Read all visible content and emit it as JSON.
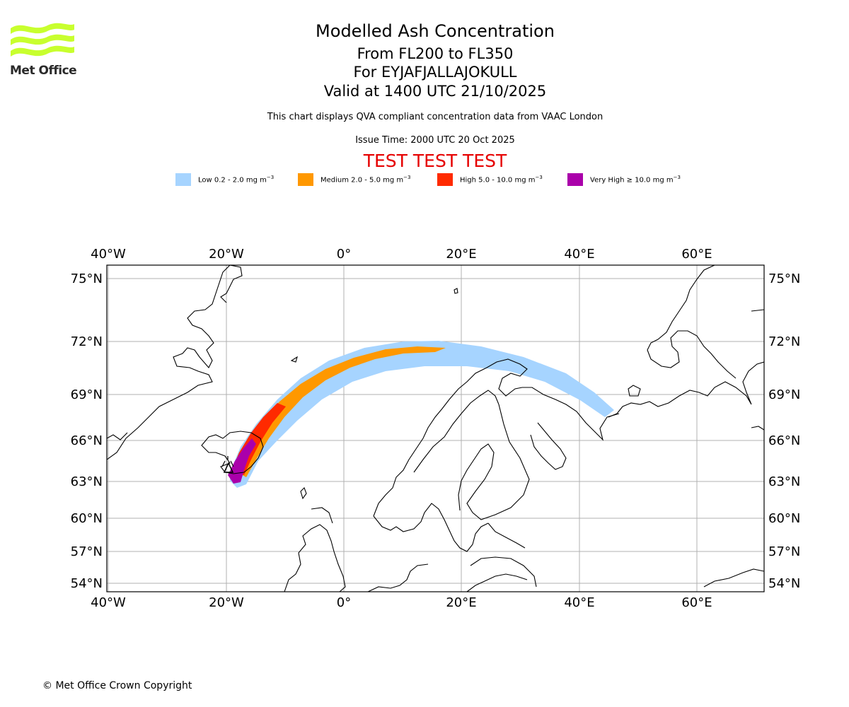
{
  "logo": {
    "text": "Met Office",
    "color": "#c8ff2e"
  },
  "title": {
    "line1": "Modelled Ash Concentration",
    "line2": "From FL200 to FL350",
    "line3": "For EYJAFJALLAJOKULL",
    "line4": "Valid at 1400 UTC 21/10/2025"
  },
  "subtitle": "This chart displays QVA compliant concentration data from VAAC London",
  "issue_time": "Issue Time: 2000 UTC 20 Oct 2025",
  "test_banner": "TEST TEST TEST",
  "legend": [
    {
      "label": "Low 0.2 - 2.0 mg m",
      "color": "#a6d4ff"
    },
    {
      "label": "Medium 2.0 - 5.0 mg m",
      "color": "#ff9800"
    },
    {
      "label": "High 5.0 - 10.0 mg m",
      "color": "#ff2a00"
    },
    {
      "label": "Very High  ≥  10.0 mg m",
      "color": "#aa00aa"
    }
  ],
  "legend_unit_exp": "−3",
  "map": {
    "lon_ticks": [
      "40°W",
      "20°W",
      "0°",
      "20°E",
      "40°E",
      "60°E"
    ],
    "lat_ticks": [
      "75°N",
      "72°N",
      "69°N",
      "66°N",
      "63°N",
      "60°N",
      "57°N",
      "54°N"
    ]
  },
  "copyright": "© Met Office Crown Copyright"
}
